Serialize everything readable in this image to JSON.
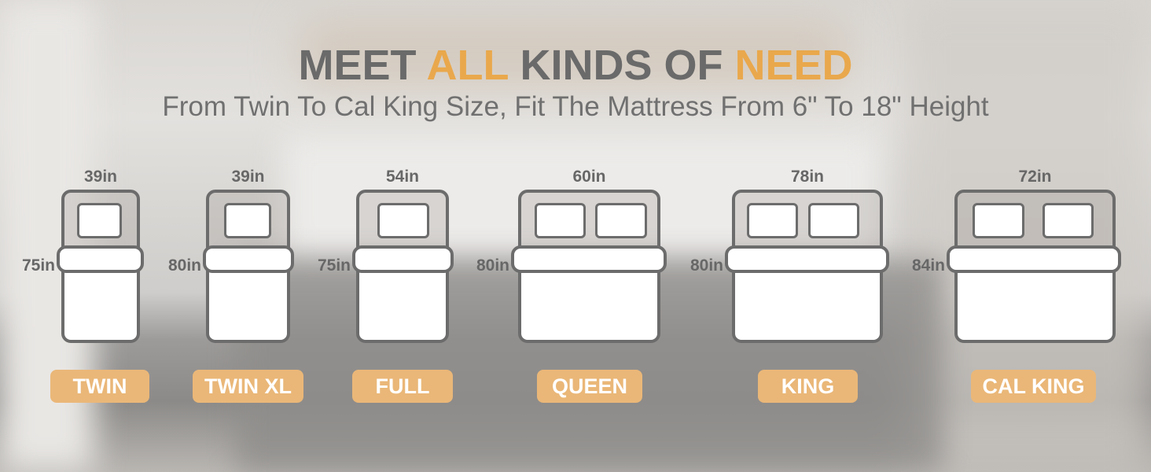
{
  "heading": {
    "part1": "MEET ",
    "part2": "ALL",
    "part3": " KINDS OF ",
    "part4": "NEED"
  },
  "subtitle": "From Twin To Cal King Size, Fit The Mattress From 6\" To 18\" Height",
  "colors": {
    "accent": "#e9a84c",
    "label_bg": "#eab778",
    "text": "#6a6a6a"
  },
  "sizes": [
    {
      "name": "TWIN",
      "width": "39in",
      "length": "75in",
      "pillows": 1
    },
    {
      "name": "TWIN XL",
      "width": "39in",
      "length": "80in",
      "pillows": 1
    },
    {
      "name": "FULL",
      "width": "54in",
      "length": "75in",
      "pillows": 1
    },
    {
      "name": "QUEEN",
      "width": "60in",
      "length": "80in",
      "pillows": 2
    },
    {
      "name": "KING",
      "width": "78in",
      "length": "80in",
      "pillows": 2
    },
    {
      "name": "CAL KING",
      "width": "72in",
      "length": "84in",
      "pillows": 2
    }
  ]
}
